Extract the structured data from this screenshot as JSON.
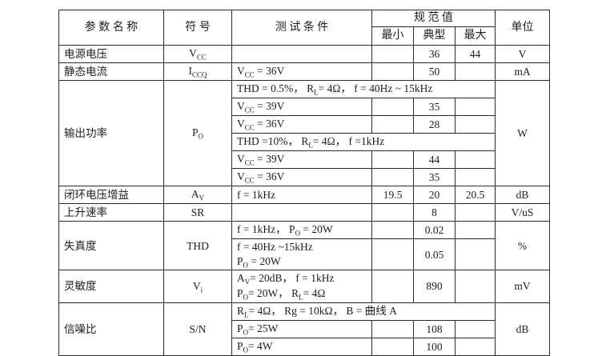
{
  "table": {
    "header": {
      "param_name": "参 数 名 称",
      "symbol": "符 号",
      "test_condition": "测 试 条 件",
      "spec_value": "规 范 值",
      "min": "最小",
      "typ": "典型",
      "max": "最大",
      "unit": "单位"
    },
    "rows": [
      [
        {
          "t": "电源电压",
          "k": "param"
        },
        {
          "t": "V_{CC}",
          "k": "symbol"
        },
        {
          "t": "",
          "k": "cond"
        },
        {
          "t": "",
          "k": "value"
        },
        {
          "t": "36",
          "k": "value"
        },
        {
          "t": "44",
          "k": "value"
        },
        {
          "t": "V",
          "k": "unit"
        }
      ],
      [
        {
          "t": "静态电流",
          "k": "param"
        },
        {
          "t": "I_{CCQ}",
          "k": "symbol"
        },
        {
          "t": "V_{CC} = 36V",
          "k": "cond"
        },
        {
          "t": "",
          "k": "value"
        },
        {
          "t": "50",
          "k": "value"
        },
        {
          "t": "",
          "k": "value"
        },
        {
          "t": "mA",
          "k": "unit"
        }
      ],
      [
        {
          "t": "输出功率",
          "k": "param",
          "rs": 6
        },
        {
          "t": "P_{O}",
          "k": "symbol",
          "rs": 6
        },
        {
          "t": "THD = 0.5%， R_{L}= 4Ω， f = 40Hz ~ 15kHz",
          "k": "cond",
          "cs": 4
        },
        {
          "t": "W",
          "k": "unit",
          "rs": 6
        }
      ],
      [
        {
          "t": "V_{CC} = 39V",
          "k": "cond"
        },
        {
          "t": "",
          "k": "value"
        },
        {
          "t": "35",
          "k": "value"
        },
        {
          "t": "",
          "k": "value"
        }
      ],
      [
        {
          "t": "V_{CC} = 36V",
          "k": "cond"
        },
        {
          "t": "",
          "k": "value"
        },
        {
          "t": "28",
          "k": "value"
        },
        {
          "t": "",
          "k": "value"
        }
      ],
      [
        {
          "t": "THD =10%， R_{L}= 4Ω， f =1kHz",
          "k": "cond",
          "cs": 4
        }
      ],
      [
        {
          "t": "V_{CC} = 39V",
          "k": "cond"
        },
        {
          "t": "",
          "k": "value"
        },
        {
          "t": "44",
          "k": "value"
        },
        {
          "t": "",
          "k": "value"
        }
      ],
      [
        {
          "t": "V_{CC} = 36V",
          "k": "cond"
        },
        {
          "t": "",
          "k": "value"
        },
        {
          "t": "35",
          "k": "value"
        },
        {
          "t": "",
          "k": "value"
        }
      ],
      [
        {
          "t": "闭环电压增益",
          "k": "param"
        },
        {
          "t": "A_{V}",
          "k": "symbol"
        },
        {
          "t": "f = 1kHz",
          "k": "cond"
        },
        {
          "t": "19.5",
          "k": "value"
        },
        {
          "t": "20",
          "k": "value"
        },
        {
          "t": "20.5",
          "k": "value"
        },
        {
          "t": "dB",
          "k": "unit"
        }
      ],
      [
        {
          "t": "上升速率",
          "k": "param"
        },
        {
          "t": "SR",
          "k": "symbol"
        },
        {
          "t": "",
          "k": "cond"
        },
        {
          "t": "",
          "k": "value"
        },
        {
          "t": "8",
          "k": "value"
        },
        {
          "t": "",
          "k": "value"
        },
        {
          "t": "V/uS",
          "k": "unit"
        }
      ],
      [
        {
          "t": "失真度",
          "k": "param",
          "rs": 2
        },
        {
          "t": "THD",
          "k": "symbol",
          "rs": 2
        },
        {
          "t": "f = 1kHz， P_{O} = 20W",
          "k": "cond"
        },
        {
          "t": "",
          "k": "value"
        },
        {
          "t": "0.02",
          "k": "value"
        },
        {
          "t": "",
          "k": "value"
        },
        {
          "t": "%",
          "k": "unit",
          "rs": 2
        }
      ],
      [
        {
          "t": "f = 40Hz ~15kHz\nP_{O} = 20W",
          "k": "cond"
        },
        {
          "t": "",
          "k": "value"
        },
        {
          "t": "0.05",
          "k": "value"
        },
        {
          "t": "",
          "k": "value"
        }
      ],
      [
        {
          "t": "灵敏度",
          "k": "param"
        },
        {
          "t": "V_{i}",
          "k": "symbol"
        },
        {
          "t": "A_{V}= 20dB， f = 1kHz\nP_{O}= 20W， R_{L}= 4Ω",
          "k": "cond"
        },
        {
          "t": "",
          "k": "value"
        },
        {
          "t": "890",
          "k": "value"
        },
        {
          "t": "",
          "k": "value"
        },
        {
          "t": "mV",
          "k": "unit"
        }
      ],
      [
        {
          "t": "信噪比",
          "k": "param",
          "rs": 3
        },
        {
          "t": "S/N",
          "k": "symbol",
          "rs": 3
        },
        {
          "t": "R_{L}= 4Ω， Rg = 10kΩ， B =  曲线 A",
          "k": "cond",
          "cs": 4
        },
        {
          "t": "dB",
          "k": "unit",
          "rs": 3
        }
      ],
      [
        {
          "t": "P_{O}= 25W",
          "k": "cond"
        },
        {
          "t": "",
          "k": "value"
        },
        {
          "t": "108",
          "k": "value"
        },
        {
          "t": "",
          "k": "value"
        }
      ],
      [
        {
          "t": "P_{O}= 4W",
          "k": "cond"
        },
        {
          "t": "",
          "k": "value"
        },
        {
          "t": "100",
          "k": "value"
        },
        {
          "t": "",
          "k": "value"
        }
      ]
    ]
  }
}
